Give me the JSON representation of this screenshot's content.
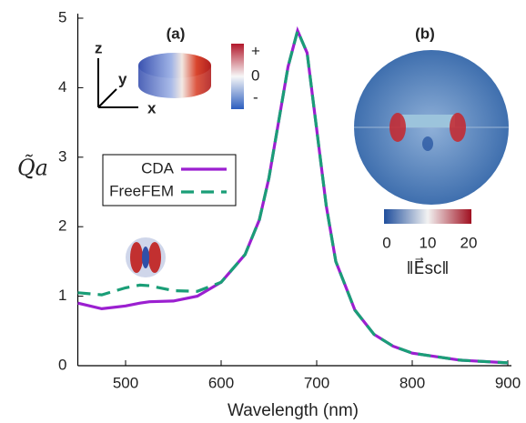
{
  "chart_data": {
    "type": "line",
    "ylabel": "Q̃a",
    "xlabel": "Wavelength (nm)",
    "x": [
      450,
      475,
      500,
      515,
      525,
      550,
      575,
      600,
      625,
      640,
      650,
      660,
      670,
      680,
      690,
      700,
      710,
      720,
      740,
      760,
      780,
      800,
      850,
      900
    ],
    "series": [
      {
        "name": "CDA",
        "color": "#9b1fd0",
        "dash": false,
        "values": [
          0.9,
          0.82,
          0.86,
          0.9,
          0.92,
          0.93,
          1.0,
          1.2,
          1.6,
          2.1,
          2.7,
          3.5,
          4.3,
          4.82,
          4.5,
          3.4,
          2.3,
          1.5,
          0.8,
          0.45,
          0.28,
          0.18,
          0.08,
          0.04
        ]
      },
      {
        "name": "FreeFEM",
        "color": "#1a9e77",
        "dash": true,
        "values": [
          1.05,
          1.02,
          1.12,
          1.16,
          1.15,
          1.08,
          1.07,
          1.2,
          1.6,
          2.1,
          2.7,
          3.5,
          4.3,
          4.82,
          4.5,
          3.4,
          2.3,
          1.5,
          0.8,
          0.45,
          0.28,
          0.18,
          0.08,
          0.04
        ]
      }
    ],
    "xlim": [
      450,
      900
    ],
    "xticks": [
      500,
      600,
      700,
      800,
      900
    ],
    "ylim": [
      0,
      5
    ],
    "yticks": [
      0,
      1,
      2,
      3,
      4,
      5
    ],
    "legend": "center-left",
    "annotations": {
      "panel_a": "(a)",
      "panel_b": "(b)",
      "axis_z": "z",
      "axis_y": "y",
      "axis_x": "x",
      "cbar_a_plus": "+",
      "cbar_a_zero": "0",
      "cbar_a_minus": "-",
      "cbar_b_ticks": [
        "0",
        "10",
        "20"
      ],
      "cbar_b_label": "‖E⃗sc‖"
    }
  }
}
